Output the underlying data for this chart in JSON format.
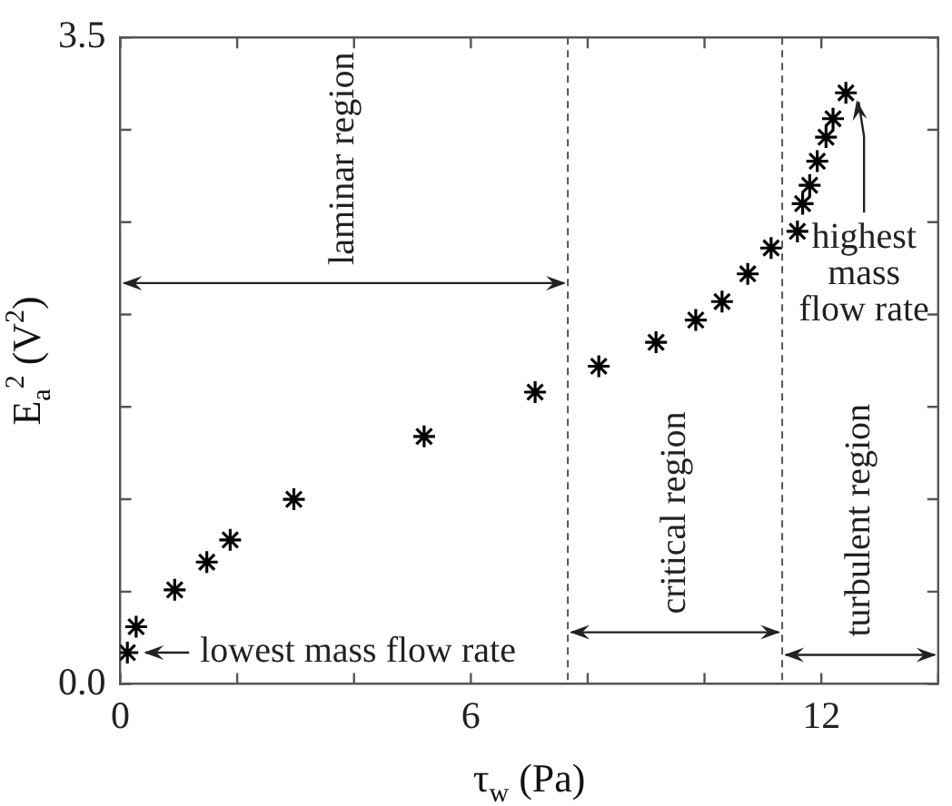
{
  "chart_data": {
    "type": "scatter",
    "xlabel": "τ$_{w}$ (Pa)",
    "ylabel": "E$_{a}$$^{2}$ (V$^{2}$)",
    "x": [
      0.12,
      0.27,
      0.93,
      1.48,
      1.88,
      2.97,
      5.2,
      7.1,
      8.19,
      9.17,
      9.85,
      10.3,
      10.74,
      11.14,
      11.59,
      11.68,
      11.8,
      11.93,
      12.08,
      12.2,
      12.42
    ],
    "series": [
      {
        "color": "#000000",
        "values": [
          0.17,
          0.31,
          0.51,
          0.66,
          0.78,
          1.0,
          1.34,
          1.58,
          1.72,
          1.85,
          1.97,
          2.07,
          2.22,
          2.36,
          2.45,
          2.6,
          2.7,
          2.83,
          2.96,
          3.06,
          3.2
        ]
      }
    ],
    "marker": "cross",
    "grid": false,
    "legend": false,
    "xlim": [
      0,
      14
    ],
    "xticks": [
      0,
      {
        "value": 2,
        "label": null
      },
      {
        "value": 4,
        "label": null
      },
      6,
      {
        "value": 8,
        "label": null
      },
      {
        "value": 10,
        "label": null
      },
      12,
      {
        "value": 14,
        "label": null
      }
    ],
    "ylim": [
      0,
      3.5
    ],
    "yticks": [
      {
        "value": 0,
        "label": "0.0"
      },
      {
        "value": 0.5,
        "label": null
      },
      {
        "value": 1,
        "label": null
      },
      {
        "value": 1.5,
        "label": null
      },
      {
        "value": 2,
        "label": null
      },
      {
        "value": 2.5,
        "label": null
      },
      {
        "value": 3,
        "label": null
      },
      {
        "value": 3.5,
        "label": "3.5"
      }
    ],
    "ref_lines": [
      {
        "axis": "x",
        "value": 7.66,
        "color": "#555555",
        "line_style": "dashed"
      },
      {
        "axis": "x",
        "value": 11.33,
        "color": "#555555",
        "line_style": "dashed"
      }
    ],
    "annotations": [
      "laminar region",
      "critical region",
      "turbulent region",
      {
        "text": "lowest mass flow rate",
        "x": 0.12,
        "y": 0.17
      },
      {
        "text": "highest mass flow rate",
        "x": 12.42,
        "y": 3.2
      }
    ]
  }
}
